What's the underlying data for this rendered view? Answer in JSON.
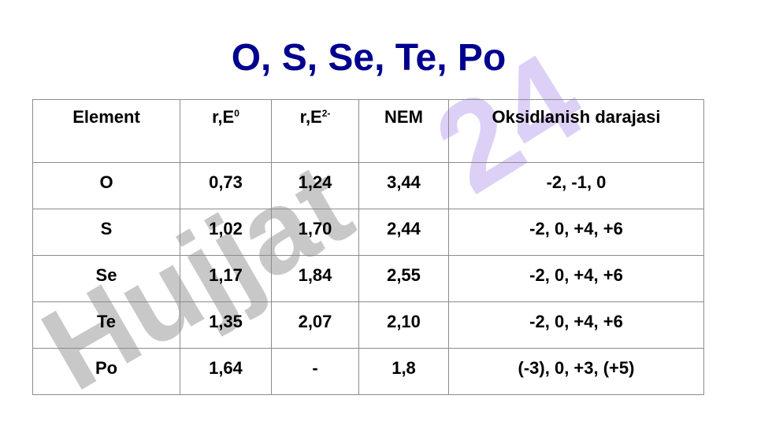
{
  "title": "O, S, Se, Te, Po",
  "watermark": {
    "word": "Hujjat",
    "number": "24"
  },
  "table": {
    "headers": [
      {
        "text": "Element"
      },
      {
        "text": "r,E",
        "sup": "0"
      },
      {
        "text": "r,E",
        "sup": "2-"
      },
      {
        "text": "NEM"
      },
      {
        "text": "Oksidlanish darajasi"
      }
    ],
    "rows": [
      [
        "O",
        "0,73",
        "1,24",
        "3,44",
        "-2, -1, 0"
      ],
      [
        "S",
        "1,02",
        "1,70",
        "2,44",
        "-2, 0, +4, +6"
      ],
      [
        "Se",
        "1,17",
        "1,84",
        "2,55",
        "-2, 0, +4, +6"
      ],
      [
        "Te",
        "1,35",
        "2,07",
        "2,10",
        "-2, 0, +4, +6"
      ],
      [
        "Po",
        "1,64",
        "-",
        "1,8",
        "(-3), 0, +3, (+5)"
      ]
    ]
  }
}
